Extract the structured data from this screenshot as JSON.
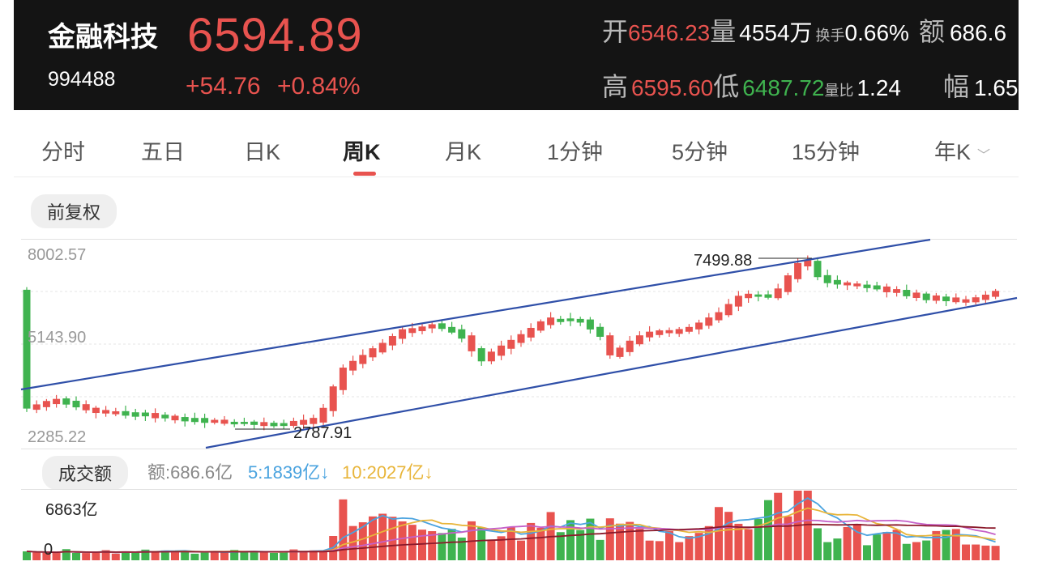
{
  "header": {
    "name": "金融科技",
    "code": "994488",
    "price": "6594.89",
    "change": "+54.76",
    "change_pct": "+0.84%",
    "open_label": "开",
    "open": "6546.23",
    "vol_label": "量",
    "vol": "4554万",
    "turnover_label": "换手",
    "turnover": "0.66%",
    "amount_label": "额",
    "amount": "686.6",
    "high_label": "高",
    "high": "6595.60",
    "low_label": "低",
    "low": "6487.72",
    "ratio_label": "量比",
    "ratio": "1.24",
    "amp_label": "幅",
    "amp": "1.65%"
  },
  "tabs": [
    "分时",
    "五日",
    "日K",
    "周K",
    "月K",
    "1分钟",
    "5分钟",
    "15分钟",
    "年K"
  ],
  "active_tab": "周K",
  "adjust_label": "前复权",
  "chart": {
    "y_labels": [
      "8002.57",
      "5143.90",
      "2285.22"
    ],
    "max_annotation": "7499.88",
    "min_annotation": "2787.91"
  },
  "volume": {
    "label": "成交额",
    "amount_info": "额:686.6亿",
    "ma5_info": "5:1839亿↓",
    "ma10_info": "10:2027亿↓",
    "max_label": "6863亿",
    "zero_label": "0"
  },
  "colors": {
    "up": "#e8534f",
    "down": "#3fb34f",
    "channel": "#2f4fa8",
    "ma5": "#4aa3df",
    "ma10": "#e8b53a"
  }
}
